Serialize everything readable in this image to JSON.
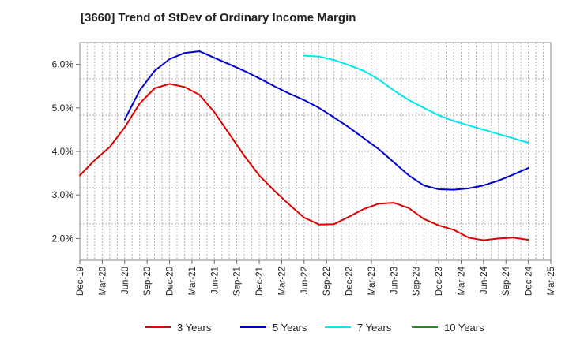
{
  "chart_data": {
    "type": "line",
    "title": "[3660]  Trend of StDev of Ordinary Income Margin",
    "xlabel": "",
    "ylabel": "",
    "x_ticks": [
      "Dec-19",
      "Mar-20",
      "Jun-20",
      "Sep-20",
      "Dec-20",
      "Mar-21",
      "Jun-21",
      "Sep-21",
      "Dec-21",
      "Mar-22",
      "Jun-22",
      "Sep-22",
      "Dec-22",
      "Mar-23",
      "Jun-23",
      "Sep-23",
      "Dec-23",
      "Mar-24",
      "Jun-24",
      "Sep-24",
      "Dec-24",
      "Mar-25"
    ],
    "y_ticks": [
      "2.0%",
      "3.0%",
      "4.0%",
      "5.0%",
      "6.0%"
    ],
    "y_tick_values": [
      2.0,
      3.0,
      4.0,
      5.0,
      6.0
    ],
    "ylim": [
      1.5,
      6.5
    ],
    "grid": true,
    "legend_position": "bottom",
    "series": [
      {
        "name": "3 Years",
        "color": "#dd0000",
        "points": [
          [
            "Dec-19",
            3.45
          ],
          [
            "Feb-20",
            3.8
          ],
          [
            "Apr-20",
            4.1
          ],
          [
            "Jun-20",
            4.55
          ],
          [
            "Aug-20",
            5.1
          ],
          [
            "Oct-20",
            5.45
          ],
          [
            "Dec-20",
            5.55
          ],
          [
            "Feb-21",
            5.48
          ],
          [
            "Apr-21",
            5.3
          ],
          [
            "Jun-21",
            4.9
          ],
          [
            "Aug-21",
            4.4
          ],
          [
            "Oct-21",
            3.9
          ],
          [
            "Dec-21",
            3.45
          ],
          [
            "Feb-22",
            3.1
          ],
          [
            "Apr-22",
            2.78
          ],
          [
            "Jun-22",
            2.48
          ],
          [
            "Aug-22",
            2.32
          ],
          [
            "Oct-22",
            2.33
          ],
          [
            "Dec-22",
            2.5
          ],
          [
            "Feb-23",
            2.68
          ],
          [
            "Apr-23",
            2.8
          ],
          [
            "Jun-23",
            2.82
          ],
          [
            "Aug-23",
            2.7
          ],
          [
            "Oct-23",
            2.45
          ],
          [
            "Dec-23",
            2.3
          ],
          [
            "Feb-24",
            2.2
          ],
          [
            "Apr-24",
            2.02
          ],
          [
            "Jun-24",
            1.96
          ],
          [
            "Aug-24",
            2.0
          ],
          [
            "Oct-24",
            2.02
          ],
          [
            "Dec-24",
            1.97
          ]
        ]
      },
      {
        "name": "5 Years",
        "color": "#0000cc",
        "points": [
          [
            "Jun-20",
            4.73
          ],
          [
            "Aug-20",
            5.4
          ],
          [
            "Oct-20",
            5.85
          ],
          [
            "Dec-20",
            6.12
          ],
          [
            "Feb-21",
            6.26
          ],
          [
            "Apr-21",
            6.3
          ],
          [
            "Jun-21",
            6.15
          ],
          [
            "Aug-21",
            6.0
          ],
          [
            "Oct-21",
            5.85
          ],
          [
            "Dec-21",
            5.68
          ],
          [
            "Feb-22",
            5.5
          ],
          [
            "Apr-22",
            5.33
          ],
          [
            "Jun-22",
            5.18
          ],
          [
            "Aug-22",
            5.0
          ],
          [
            "Oct-22",
            4.78
          ],
          [
            "Dec-22",
            4.55
          ],
          [
            "Feb-23",
            4.3
          ],
          [
            "Apr-23",
            4.05
          ],
          [
            "Jun-23",
            3.75
          ],
          [
            "Aug-23",
            3.45
          ],
          [
            "Oct-23",
            3.22
          ],
          [
            "Dec-23",
            3.13
          ],
          [
            "Feb-24",
            3.12
          ],
          [
            "Apr-24",
            3.15
          ],
          [
            "Jun-24",
            3.22
          ],
          [
            "Aug-24",
            3.33
          ],
          [
            "Oct-24",
            3.47
          ],
          [
            "Dec-24",
            3.62
          ]
        ]
      },
      {
        "name": "7 Years",
        "color": "#00e5ee",
        "points": [
          [
            "Jun-22",
            6.2
          ],
          [
            "Aug-22",
            6.18
          ],
          [
            "Oct-22",
            6.1
          ],
          [
            "Dec-22",
            5.98
          ],
          [
            "Feb-23",
            5.85
          ],
          [
            "Apr-23",
            5.65
          ],
          [
            "Jun-23",
            5.4
          ],
          [
            "Aug-23",
            5.18
          ],
          [
            "Oct-23",
            5.0
          ],
          [
            "Dec-23",
            4.83
          ],
          [
            "Feb-24",
            4.7
          ],
          [
            "Apr-24",
            4.6
          ],
          [
            "Jun-24",
            4.5
          ],
          [
            "Aug-24",
            4.4
          ],
          [
            "Oct-24",
            4.3
          ],
          [
            "Dec-24",
            4.2
          ]
        ]
      },
      {
        "name": "10 Years",
        "color": "#228b22",
        "points": []
      }
    ]
  }
}
